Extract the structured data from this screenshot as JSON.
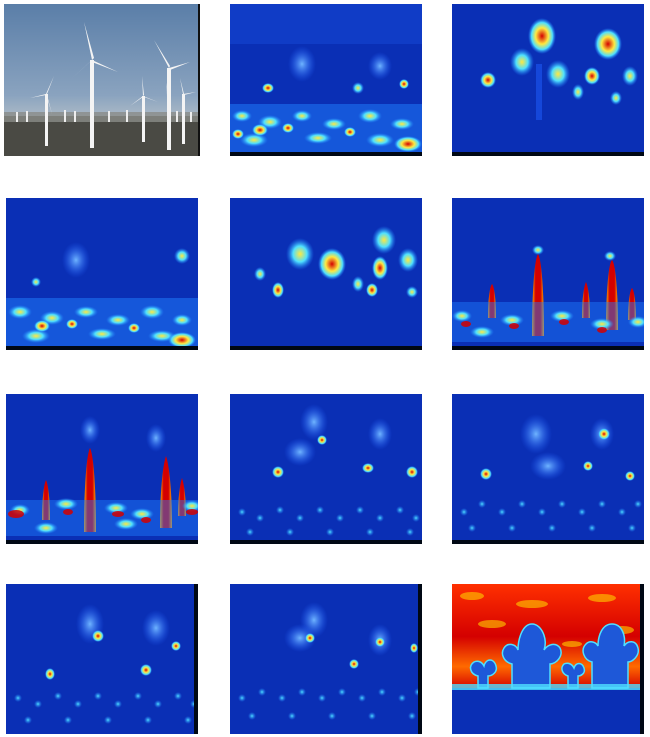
{
  "colors": {
    "background": "#ffffff",
    "jet_low": "#0a2fb5",
    "jet_mid": "#1f7fff",
    "jet_cyan": "#4fe0ff",
    "jet_yellow": "#ffe840",
    "jet_red": "#d40000",
    "dark_edge": "#000814"
  },
  "grid": {
    "rows": 4,
    "columns": 3,
    "tiles": [
      {
        "kind": "photo",
        "subject": "wind-turbines"
      },
      {
        "kind": "heatmap",
        "focus": "ground"
      },
      {
        "kind": "heatmap",
        "focus": "rotor-hubs"
      },
      {
        "kind": "heatmap",
        "focus": "ground"
      },
      {
        "kind": "heatmap",
        "focus": "blades"
      },
      {
        "kind": "heatmap",
        "focus": "towers"
      },
      {
        "kind": "heatmap",
        "focus": "towers"
      },
      {
        "kind": "heatmap",
        "focus": "hub-points"
      },
      {
        "kind": "heatmap",
        "focus": "hub-points"
      },
      {
        "kind": "heatmap",
        "focus": "hub-points"
      },
      {
        "kind": "heatmap",
        "focus": "hub-points"
      },
      {
        "kind": "heatmap",
        "focus": "sky-inverse"
      }
    ]
  }
}
